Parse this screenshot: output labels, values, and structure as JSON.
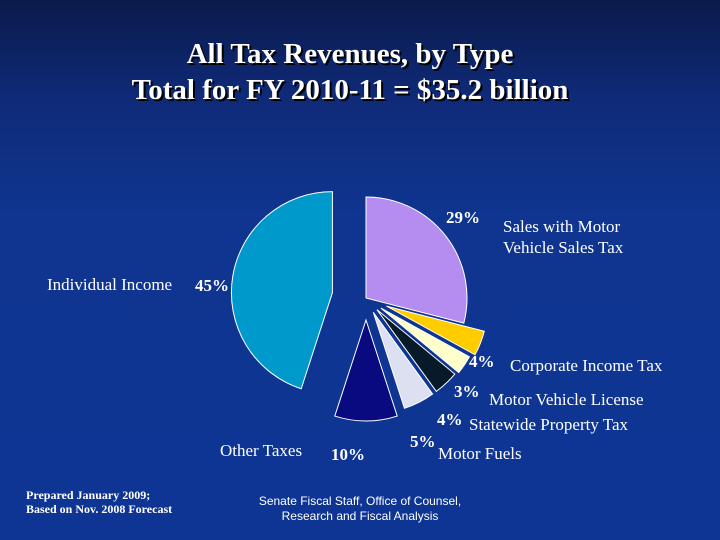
{
  "title_line1": "All Tax Revenues, by Type",
  "title_line2": "Total for FY 2010-11 = $35.2 billion",
  "chart_data": {
    "type": "pie",
    "title": "All Tax Revenues, by Type — Total for FY 2010-11 = $35.2 billion",
    "slices": [
      {
        "label_line1": "Sales with Motor",
        "label_line2": "Vehicle Sales Tax",
        "value": 29,
        "pct": "29%",
        "color": "#b58cf0"
      },
      {
        "label": "Corporate Income Tax",
        "value": 4,
        "pct": "4%",
        "color": "#ffcc00"
      },
      {
        "label": "Motor Vehicle License",
        "value": 3,
        "pct": "3%",
        "color": "#ffffcc"
      },
      {
        "label": "Statewide Property Tax",
        "value": 4,
        "pct": "4%",
        "color": "#061a2a"
      },
      {
        "label": "Motor Fuels",
        "value": 5,
        "pct": "5%",
        "color": "#dde0f0"
      },
      {
        "label": "Other Taxes",
        "value": 10,
        "pct": "10%",
        "color": "#0a0a80"
      },
      {
        "label": "Individual Income",
        "value": 45,
        "pct": "45%",
        "color": "#0099cc"
      }
    ]
  },
  "footer": {
    "prepared_line1": "Prepared January 2009;",
    "prepared_line2": "Based on Nov. 2008 Forecast",
    "source_line1": "Senate Fiscal Staff,  Office of Counsel,",
    "source_line2": "Research and Fiscal Analysis"
  }
}
